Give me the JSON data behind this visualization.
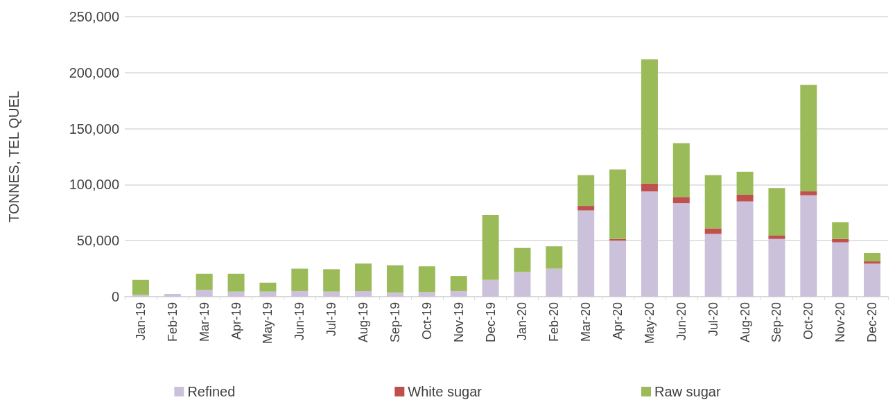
{
  "chart_data": {
    "type": "bar",
    "stacked": true,
    "ylabel": "TONNES, TEL QUEL",
    "categories": [
      "Jan-19",
      "Feb-19",
      "Mar-19",
      "Apr-19",
      "May-19",
      "Jun-19",
      "Jul-19",
      "Aug-19",
      "Sep-19",
      "Oct-19",
      "Nov-19",
      "Dec-19",
      "Jan-20",
      "Feb-20",
      "Mar-20",
      "Apr-20",
      "May-20",
      "Jun-20",
      "Jul-20",
      "Aug-20",
      "Sep-20",
      "Oct-20",
      "Nov-20",
      "Dec-20"
    ],
    "series": [
      {
        "name": "Refined",
        "color": "#ccc1da",
        "values": [
          1500,
          2500,
          6000,
          4500,
          4500,
          5000,
          4500,
          5000,
          3500,
          4000,
          5000,
          15000,
          22000,
          25000,
          77000,
          50000,
          94000,
          83500,
          56000,
          85000,
          51500,
          90500,
          48500,
          29500
        ]
      },
      {
        "name": "White sugar",
        "color": "#c0504d",
        "values": [
          0,
          0,
          0,
          0,
          0,
          0,
          0,
          0,
          0,
          0,
          0,
          0,
          0,
          0,
          4000,
          1500,
          7000,
          5500,
          5000,
          6000,
          3000,
          3500,
          3000,
          2000
        ]
      },
      {
        "name": "Raw sugar",
        "color": "#9bbb59",
        "values": [
          13500,
          0,
          14500,
          16000,
          8000,
          20000,
          20000,
          24500,
          24500,
          23000,
          13500,
          58000,
          21500,
          20000,
          27500,
          62000,
          111000,
          48000,
          47500,
          20500,
          42500,
          95000,
          15000,
          7500
        ]
      }
    ],
    "ylim": [
      0,
      250000
    ],
    "yticks": [
      0,
      {
        "value": 50000,
        "label": "50,000"
      },
      {
        "value": 100000,
        "label": "100,000"
      },
      {
        "value": 150000,
        "label": "150,000"
      },
      {
        "value": 200000,
        "label": "200,000"
      },
      {
        "value": 250000,
        "label": "250,000"
      }
    ],
    "grid": "y",
    "legend": "bottom"
  }
}
